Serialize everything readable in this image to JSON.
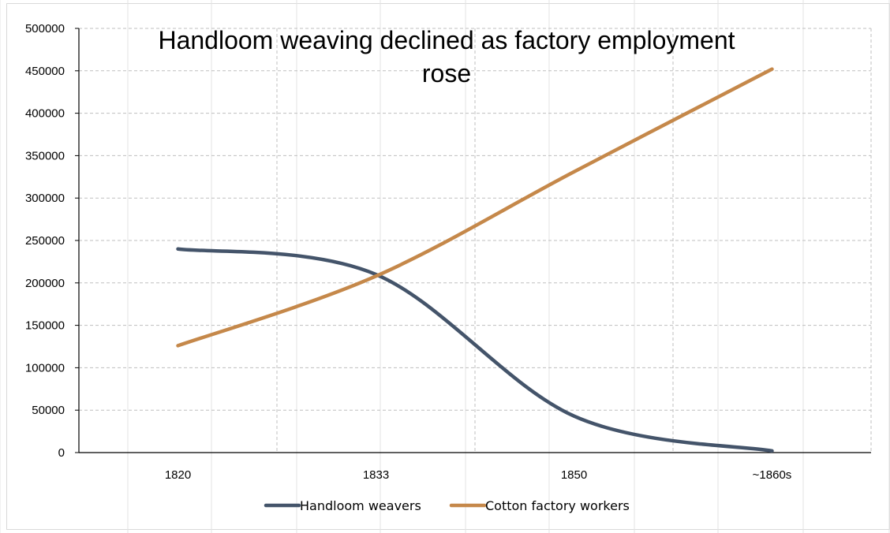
{
  "chart_data": {
    "type": "line",
    "title_lines": [
      "Handloom weaving declined as factory employment",
      "rose"
    ],
    "categories": [
      "1820",
      "1833",
      "1850",
      "~1860s"
    ],
    "ylim": [
      0,
      500000
    ],
    "yticks": [
      0,
      50000,
      100000,
      150000,
      200000,
      250000,
      300000,
      350000,
      400000,
      450000,
      500000
    ],
    "ytick_labels": [
      "0",
      "50000",
      "100000",
      "150000",
      "200000",
      "250000",
      "300000",
      "350000",
      "400000",
      "450000",
      "500000"
    ],
    "grid": true,
    "legend_position": "bottom",
    "smooth": true,
    "series": [
      {
        "name": "Handloom weavers",
        "color": "#44546a",
        "values": [
          240000,
          210000,
          43000,
          2000
        ]
      },
      {
        "name": "Cotton factory workers",
        "color": "#c5884a",
        "values": [
          126000,
          208000,
          331000,
          452000
        ]
      }
    ]
  }
}
